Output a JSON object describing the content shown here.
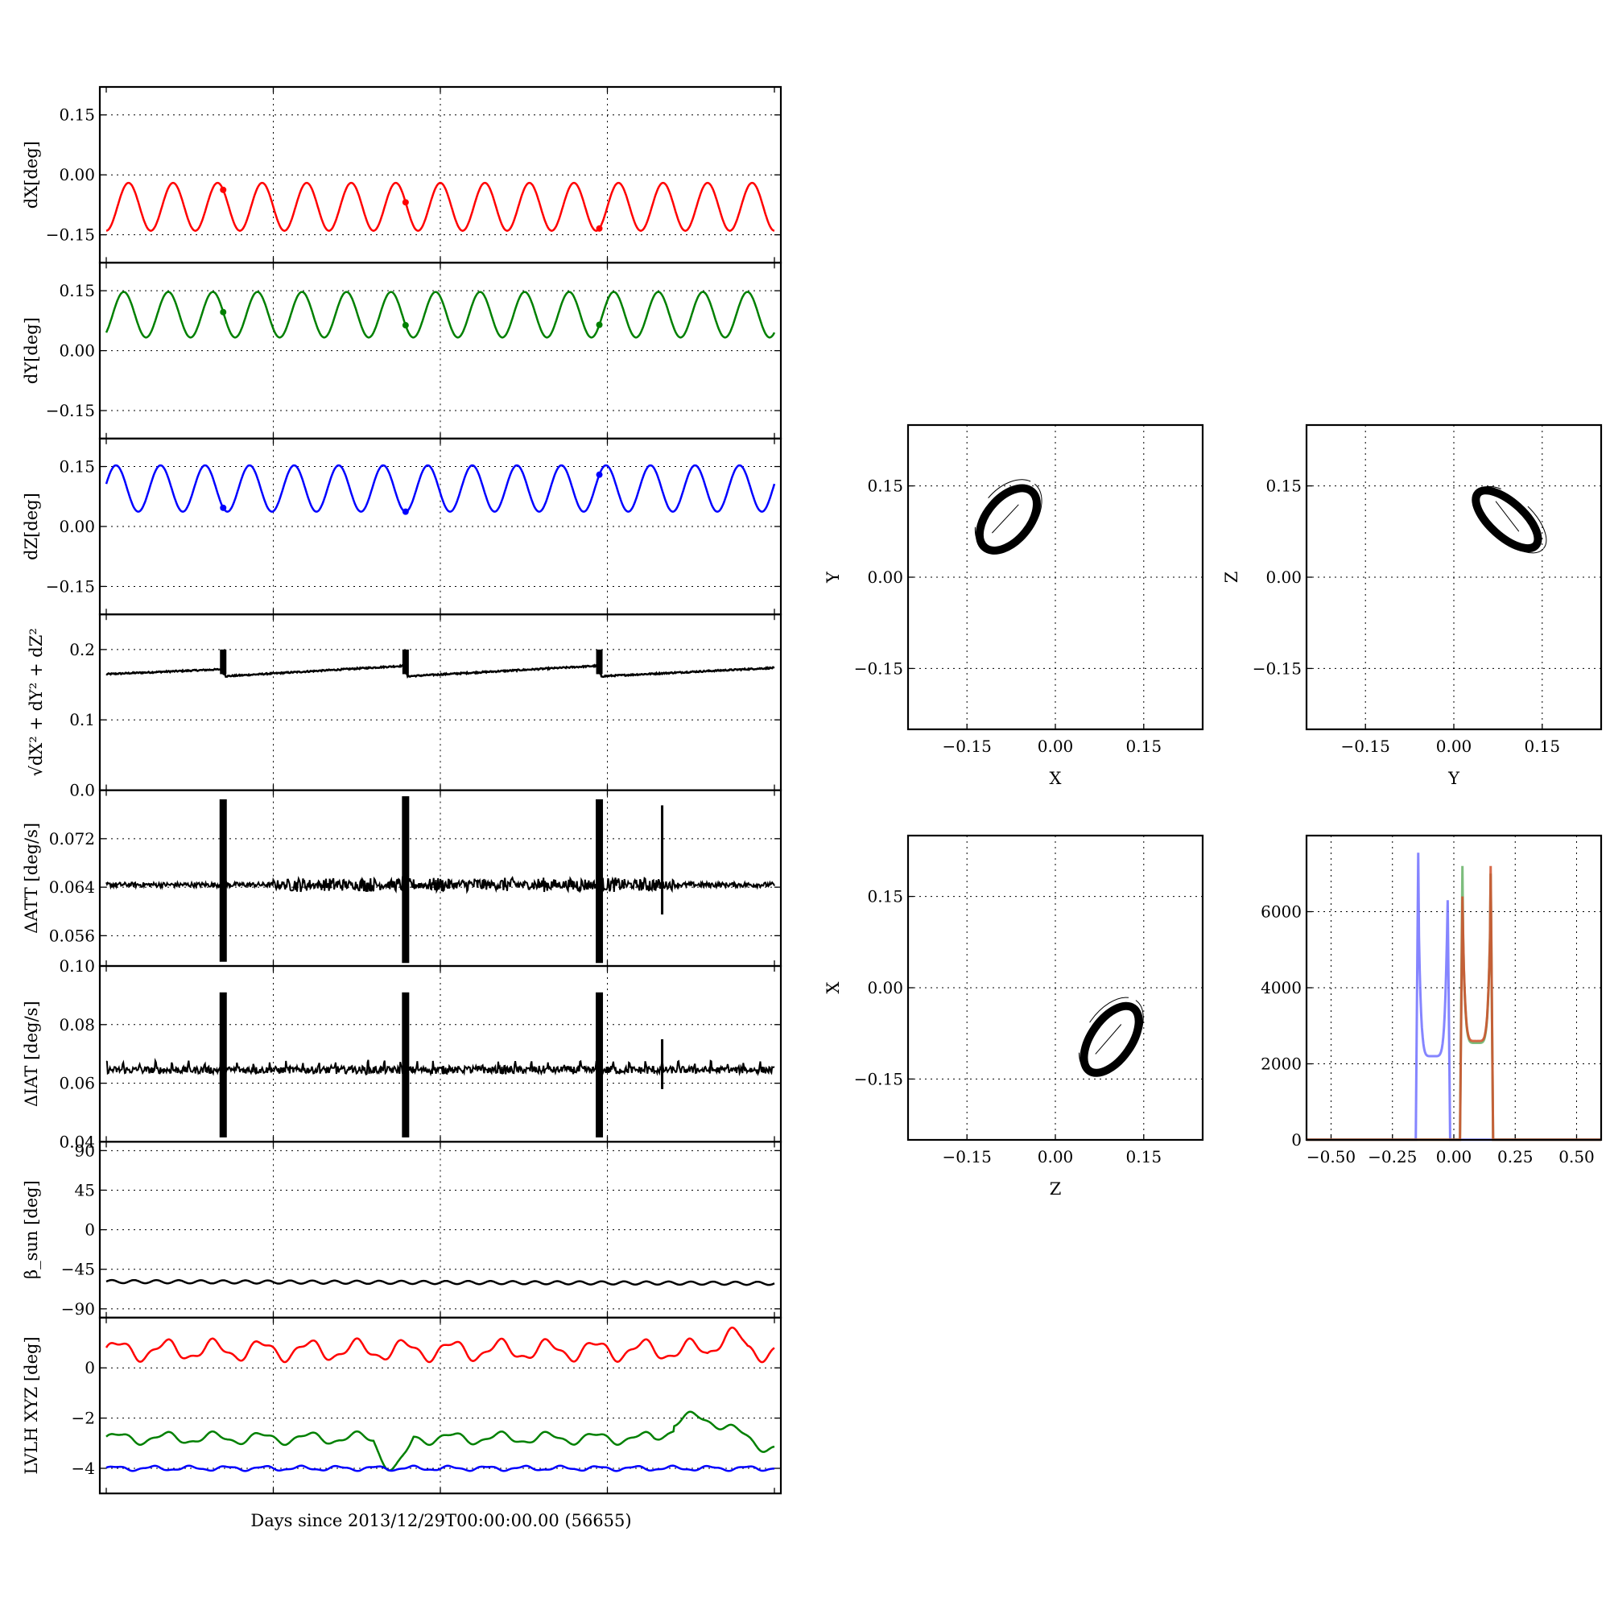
{
  "colors": {
    "red": "#ff0000",
    "green": "#008000",
    "blue": "#0000ff",
    "black": "#000000",
    "hist_blue": "#7070ff",
    "hist_green": "#66b266",
    "hist_red": "#d0502a"
  },
  "figure": {
    "xlabel": "Days since 2013/12/29T00:00:00.00 (56655)"
  },
  "chart_data": [
    {
      "id": "dx",
      "type": "line",
      "ylabel": "dX[deg]",
      "ylim": [
        -0.22,
        0.22
      ],
      "yticks": [
        -0.15,
        0.0,
        0.15
      ],
      "ytick_labels": [
        "−0.15",
        "0.00",
        "0.15"
      ],
      "xlim": [
        0,
        1
      ],
      "grid": true,
      "series": [
        {
          "color": "red",
          "kind": "sine",
          "mean": -0.08,
          "amp": 0.06,
          "periods": 15,
          "phase": -1.5708,
          "glitches": [
            0.175,
            0.448,
            0.738
          ],
          "width": 2.5
        }
      ]
    },
    {
      "id": "dy",
      "type": "line",
      "ylabel": "dY[deg]",
      "ylim": [
        -0.22,
        0.22
      ],
      "yticks": [
        -0.15,
        0.0,
        0.15
      ],
      "ytick_labels": [
        "−0.15",
        "0.00",
        "0.15"
      ],
      "xlim": [
        0,
        1
      ],
      "grid": true,
      "series": [
        {
          "color": "green",
          "kind": "sine",
          "mean": 0.09,
          "amp": 0.057,
          "periods": 15,
          "phase": -0.9,
          "glitches": [
            0.175,
            0.448,
            0.738
          ],
          "width": 2.5
        }
      ]
    },
    {
      "id": "dz",
      "type": "line",
      "ylabel": "dZ[deg]",
      "ylim": [
        -0.22,
        0.22
      ],
      "yticks": [
        -0.15,
        0.0,
        0.15
      ],
      "ytick_labels": [
        "−0.15",
        "0.00",
        "0.15"
      ],
      "xlim": [
        0,
        1
      ],
      "grid": true,
      "series": [
        {
          "color": "blue",
          "kind": "sine",
          "mean": 0.095,
          "amp": 0.058,
          "periods": 15,
          "phase": 0.2,
          "glitches": [
            0.175,
            0.448,
            0.738
          ],
          "width": 2.5
        }
      ]
    },
    {
      "id": "norm",
      "type": "line",
      "ylabel": "√dX² + dY² + dZ²",
      "ylim": [
        0.0,
        0.25
      ],
      "yticks": [
        0.0,
        0.1,
        0.2
      ],
      "ytick_labels": [
        "0.0",
        "0.1",
        "0.2"
      ],
      "xlim": [
        0,
        1
      ],
      "grid": true,
      "series": [
        {
          "color": "black",
          "kind": "sawtooth",
          "base": 0.165,
          "segments": [
            [
              0.0,
              0.175,
              0.165,
              0.172
            ],
            [
              0.178,
              0.448,
              0.162,
              0.177
            ],
            [
              0.451,
              0.738,
              0.162,
              0.177
            ],
            [
              0.741,
              1.0,
              0.162,
              0.174
            ]
          ],
          "spikes": [
            0.175,
            0.448,
            0.738
          ],
          "spike_top": 0.2,
          "width": 2.5
        }
      ]
    },
    {
      "id": "datt",
      "type": "line",
      "ylabel": "ΔATT [deg/s]",
      "ylim": [
        0.051,
        0.08
      ],
      "yticks": [
        0.056,
        0.064,
        0.072
      ],
      "ytick_labels": [
        "0.056",
        "0.064",
        "0.072"
      ],
      "xlim": [
        0,
        1
      ],
      "grid": true,
      "series": [
        {
          "color": "black",
          "kind": "noise",
          "base": 0.0644,
          "noise": 0.0004,
          "spikes": [
            [
              0.175,
              0.0517,
              0.0785
            ],
            [
              0.448,
              0.0515,
              0.079
            ],
            [
              0.738,
              0.0515,
              0.0785
            ],
            [
              0.832,
              0.0595,
              0.0775
            ]
          ],
          "bursts": [
            [
              0.25,
              0.85,
              0.0012
            ]
          ],
          "width": 2
        }
      ]
    },
    {
      "id": "diat",
      "type": "line",
      "ylabel": "ΔIAT [deg/s]",
      "ylim": [
        0.04,
        0.1
      ],
      "yticks": [
        0.04,
        0.06,
        0.08,
        0.1
      ],
      "ytick_labels": [
        "0.04",
        "0.06",
        "0.08",
        "0.10"
      ],
      "xlim": [
        0,
        1
      ],
      "grid": true,
      "series": [
        {
          "color": "black",
          "kind": "noise",
          "base": 0.0645,
          "noise": 0.0012,
          "spikes": [
            [
              0.175,
              0.0415,
              0.091
            ],
            [
              0.448,
              0.0415,
              0.091
            ],
            [
              0.738,
              0.0415,
              0.091
            ],
            [
              0.832,
              0.058,
              0.075
            ]
          ],
          "bursts": [
            [
              0.3,
              0.85,
              0.0015
            ]
          ],
          "width": 2
        }
      ]
    },
    {
      "id": "beta",
      "type": "line",
      "ylabel": "β_sun [deg]",
      "ylim": [
        -100,
        100
      ],
      "yticks": [
        -90,
        -45,
        0,
        45,
        90
      ],
      "ytick_labels": [
        "−90",
        "−45",
        "0",
        "45",
        "90"
      ],
      "xlim": [
        0,
        1
      ],
      "grid": true,
      "series": [
        {
          "color": "black",
          "kind": "sine",
          "mean": -59,
          "amp": 1.8,
          "periods": 30,
          "phase": 0,
          "trend": -2,
          "glitches": [],
          "width": 2.5
        }
      ]
    },
    {
      "id": "lvlh",
      "type": "line",
      "ylabel": "LVLH XYZ [deg]",
      "ylim": [
        -5.0,
        2.0
      ],
      "yticks": [
        -4,
        -2,
        0
      ],
      "ytick_labels": [
        "−4",
        "−2",
        "0"
      ],
      "xlim": [
        0,
        1
      ],
      "grid": true,
      "series": [
        {
          "color": "red",
          "kind": "wobble",
          "mean": 0.7,
          "amp": 0.35,
          "periods": 14,
          "width": 2.5
        },
        {
          "color": "green",
          "kind": "wobble",
          "mean": -2.8,
          "amp": 0.2,
          "periods": 14,
          "width": 2.5
        },
        {
          "color": "blue",
          "kind": "wobble",
          "mean": -4.0,
          "amp": 0.08,
          "periods": 18,
          "width": 2.5
        }
      ]
    },
    {
      "id": "xy",
      "type": "scatter",
      "xlabel": "X",
      "ylabel": "Y",
      "xlim": [
        -0.25,
        0.25
      ],
      "ylim": [
        -0.25,
        0.25
      ],
      "xticks": [
        -0.15,
        0.0,
        0.15
      ],
      "xtick_labels": [
        "−0.15",
        "0.00",
        "0.15"
      ],
      "yticks": [
        -0.15,
        0.0,
        0.15
      ],
      "ytick_labels": [
        "−0.15",
        "0.00",
        "0.15"
      ],
      "grid": true,
      "ellipse": {
        "cx": -0.08,
        "cy": 0.095,
        "rx": 0.062,
        "ry": 0.035,
        "angle_deg": 50
      }
    },
    {
      "id": "yz",
      "type": "scatter",
      "xlabel": "Y",
      "ylabel": "Z",
      "xlim": [
        -0.25,
        0.25
      ],
      "ylim": [
        -0.25,
        0.25
      ],
      "xticks": [
        -0.15,
        0.0,
        0.15
      ],
      "xtick_labels": [
        "−0.15",
        "0.00",
        "0.15"
      ],
      "yticks": [
        -0.15,
        0.0,
        0.15
      ],
      "ytick_labels": [
        "−0.15",
        "0.00",
        "0.15"
      ],
      "grid": true,
      "ellipse": {
        "cx": 0.09,
        "cy": 0.095,
        "rx": 0.066,
        "ry": 0.028,
        "angle_deg": -42
      }
    },
    {
      "id": "zx",
      "type": "scatter",
      "xlabel": "Z",
      "ylabel": "X",
      "xlim": [
        -0.25,
        0.25
      ],
      "ylim": [
        -0.25,
        0.25
      ],
      "xticks": [
        -0.15,
        0.0,
        0.15
      ],
      "xtick_labels": [
        "−0.15",
        "0.00",
        "0.15"
      ],
      "yticks": [
        -0.15,
        0.0,
        0.15
      ],
      "ytick_labels": [
        "−0.15",
        "0.00",
        "0.15"
      ],
      "grid": true,
      "ellipse": {
        "cx": 0.095,
        "cy": -0.085,
        "rx": 0.065,
        "ry": 0.033,
        "angle_deg": 55
      }
    },
    {
      "id": "hist",
      "type": "line",
      "xlim": [
        -0.6,
        0.6
      ],
      "ylim": [
        0,
        8000
      ],
      "xticks": [
        -0.5,
        -0.25,
        0.0,
        0.25,
        0.5
      ],
      "xtick_labels": [
        "−0.50",
        "−0.25",
        "0.00",
        "0.25",
        "0.50"
      ],
      "yticks": [
        0,
        2000,
        4000,
        6000
      ],
      "ytick_labels": [
        "0",
        "2000",
        "4000",
        "6000"
      ],
      "grid": true,
      "series": [
        {
          "color": "hist_blue",
          "lo": -0.145,
          "hi": -0.025,
          "peak_lo": 7550,
          "peak_hi": 6300,
          "floor": 2200
        },
        {
          "color": "hist_green",
          "lo": 0.035,
          "hi": 0.15,
          "peak_lo": 7200,
          "peak_hi": 7000,
          "floor": 2550
        },
        {
          "color": "hist_red",
          "lo": 0.035,
          "hi": 0.15,
          "peak_lo": 6400,
          "peak_hi": 7200,
          "floor": 2600
        }
      ]
    }
  ]
}
